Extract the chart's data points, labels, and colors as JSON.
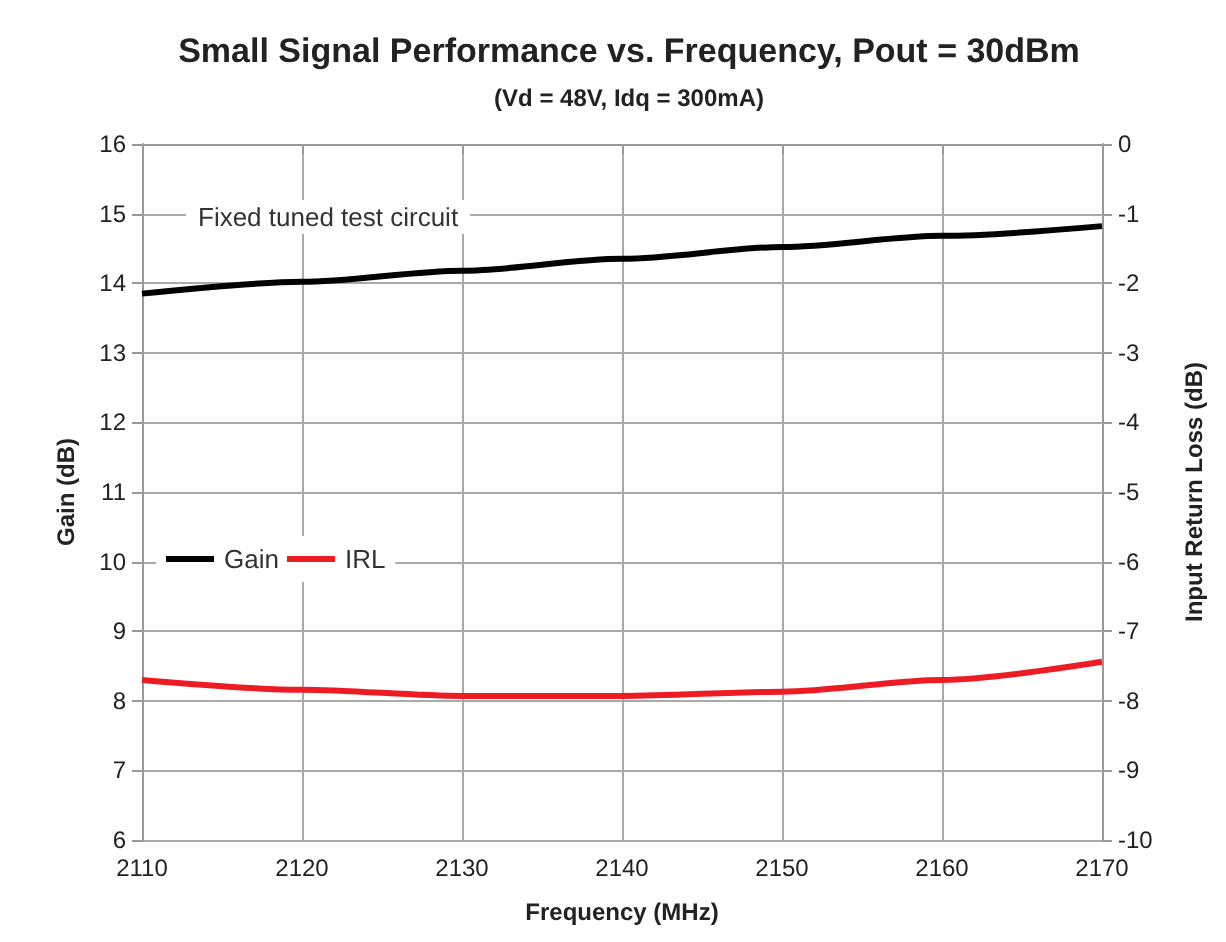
{
  "chart_data": {
    "type": "line",
    "title": "Small Signal Performance vs. Frequency, Pout = 30dBm",
    "subtitle": "(Vd = 48V, Idq = 300mA)",
    "xlabel": "Frequency (MHz)",
    "ylabel": "Gain (dB)",
    "y2label": "Input Return Loss (dB)",
    "annotations": [
      "Fixed tuned test circuit"
    ],
    "x": [
      2110,
      2120,
      2130,
      2140,
      2150,
      2160,
      2170
    ],
    "series": [
      {
        "name": "Gain",
        "color": "#000000",
        "values": [
          13.85,
          14.02,
          14.18,
          14.35,
          14.52,
          14.68,
          14.82
        ]
      },
      {
        "name": "IRL",
        "color": "#ed1c24",
        "axis": "y2",
        "values": [
          -7.7,
          -7.84,
          -7.93,
          -7.93,
          -7.87,
          -7.7,
          -7.44
        ]
      }
    ],
    "xlim": [
      2110,
      2170
    ],
    "xticks": [
      2110,
      2120,
      2130,
      2140,
      2150,
      2160,
      2170
    ],
    "ylim": [
      6,
      16
    ],
    "yticks": [
      6,
      7,
      8,
      9,
      10,
      11,
      12,
      13,
      14,
      15,
      16
    ],
    "y2lim": [
      -10,
      0
    ],
    "y2ticks": [
      -10,
      -9,
      -8,
      -7,
      -6,
      -5,
      -4,
      -3,
      -2,
      -1,
      0
    ],
    "grid": true,
    "legend": "left",
    "marker": "none",
    "line_style": "solid"
  }
}
